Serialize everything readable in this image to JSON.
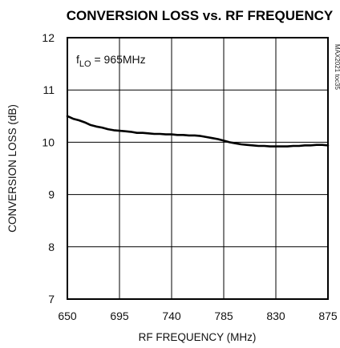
{
  "chart_data": {
    "type": "line",
    "title": "CONVERSION LOSS vs. RF FREQUENCY",
    "xlabel": "RF FREQUENCY (MHz)",
    "ylabel": "CONVERSION LOSS (dB)",
    "xlim": [
      650,
      875
    ],
    "ylim": [
      7,
      12
    ],
    "xticks": [
      "650",
      "695",
      "740",
      "785",
      "830",
      "875"
    ],
    "yticks": [
      "7",
      "8",
      "9",
      "10",
      "11",
      "12"
    ],
    "grid": true,
    "annotation": {
      "prefix": "f",
      "sub": "LO",
      "rest": " = 965MHz"
    },
    "side_label": "MAX2021 toc35",
    "series": [
      {
        "x": [
          650,
          655,
          660,
          665,
          670,
          675,
          680,
          685,
          690,
          695,
          700,
          705,
          710,
          715,
          720,
          725,
          730,
          735,
          740,
          745,
          750,
          755,
          760,
          765,
          770,
          775,
          780,
          785,
          790,
          795,
          800,
          805,
          810,
          815,
          820,
          825,
          830,
          835,
          840,
          845,
          850,
          855,
          860,
          865,
          870,
          875
        ],
        "values": [
          10.5,
          10.45,
          10.42,
          10.38,
          10.33,
          10.3,
          10.28,
          10.25,
          10.23,
          10.22,
          10.21,
          10.2,
          10.18,
          10.18,
          10.17,
          10.16,
          10.16,
          10.15,
          10.15,
          10.14,
          10.14,
          10.13,
          10.13,
          10.12,
          10.1,
          10.08,
          10.06,
          10.03,
          10.0,
          9.98,
          9.96,
          9.95,
          9.94,
          9.93,
          9.93,
          9.92,
          9.92,
          9.92,
          9.92,
          9.93,
          9.93,
          9.94,
          9.94,
          9.95,
          9.95,
          9.94
        ]
      }
    ]
  }
}
